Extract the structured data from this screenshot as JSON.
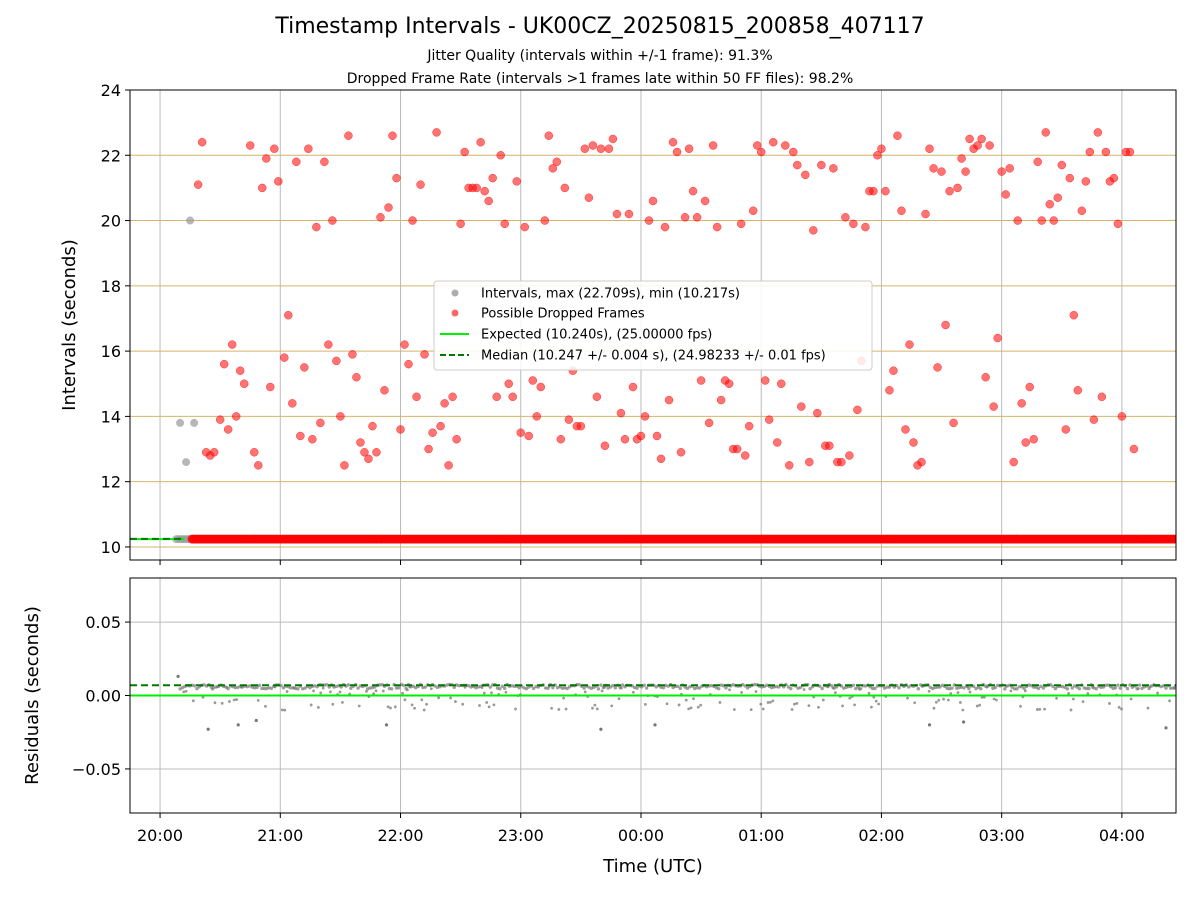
{
  "title": "Timestamp Intervals - UK00CZ_20250815_200858_407117",
  "subtitle_1": "Jitter Quality (intervals within +/-1 frame): 91.3%",
  "subtitle_2": "Dropped Frame Rate (intervals >1 frames late within 50 FF files): 98.2%",
  "colors": {
    "intervals": "#999999",
    "dropped": "#ff0000",
    "expected": "#00ee00",
    "median": "#007700",
    "hgrid": "#d4b46a",
    "vgrid": "#bbbbbb",
    "residuals": "#777777"
  },
  "chart_data": [
    {
      "type": "scatter",
      "name": "intervals",
      "xlabel": "",
      "ylabel": "Intervals (seconds)",
      "x_ticks": [
        "20:00",
        "21:00",
        "22:00",
        "23:00",
        "00:00",
        "01:00",
        "02:00",
        "03:00",
        "04:00"
      ],
      "y_ticks": [
        "10",
        "12",
        "14",
        "16",
        "18",
        "20",
        "22",
        "24"
      ],
      "xlim": [
        "19:45",
        "04:27"
      ],
      "ylim": [
        9.6,
        24
      ],
      "legend": {
        "placement": "center",
        "entries": [
          {
            "label": "Intervals, max (22.709s), min (10.217s)",
            "kind": "gray-dot"
          },
          {
            "label": "Possible Dropped Frames",
            "kind": "red-dot"
          },
          {
            "label": "Expected (10.240s), (25.00000 fps)",
            "kind": "green-line"
          },
          {
            "label": "Median (10.247 +/- 0.004 s), (24.98233 +/- 0.01 fps)",
            "kind": "green-dash"
          }
        ]
      },
      "expected_interval": 10.24,
      "median_interval": 10.247,
      "baseline_points": {
        "gray_range": [
          "20:08",
          "20:15"
        ],
        "red_range": [
          "20:16",
          "04:27"
        ],
        "y": 10.24
      },
      "gray_series": [
        {
          "x": "20:10",
          "y": 13.8
        },
        {
          "x": "20:13",
          "y": 12.6
        },
        {
          "x": "20:15",
          "y": 20.0
        },
        {
          "x": "20:17",
          "y": 13.8
        }
      ],
      "red_series": [
        {
          "x": "20:19",
          "y": 21.1
        },
        {
          "x": "20:21",
          "y": 22.4
        },
        {
          "x": "20:23",
          "y": 12.9
        },
        {
          "x": "20:25",
          "y": 12.8
        },
        {
          "x": "20:27",
          "y": 12.9
        },
        {
          "x": "20:30",
          "y": 13.9
        },
        {
          "x": "20:32",
          "y": 15.6
        },
        {
          "x": "20:34",
          "y": 13.6
        },
        {
          "x": "20:36",
          "y": 16.2
        },
        {
          "x": "20:38",
          "y": 14.0
        },
        {
          "x": "20:40",
          "y": 15.4
        },
        {
          "x": "20:42",
          "y": 15.0
        },
        {
          "x": "20:45",
          "y": 22.3
        },
        {
          "x": "20:47",
          "y": 12.9
        },
        {
          "x": "20:49",
          "y": 12.5
        },
        {
          "x": "20:51",
          "y": 21.0
        },
        {
          "x": "20:53",
          "y": 21.9
        },
        {
          "x": "20:55",
          "y": 14.9
        },
        {
          "x": "20:57",
          "y": 22.2
        },
        {
          "x": "20:59",
          "y": 21.2
        },
        {
          "x": "21:02",
          "y": 15.8
        },
        {
          "x": "21:04",
          "y": 17.1
        },
        {
          "x": "21:06",
          "y": 14.4
        },
        {
          "x": "21:08",
          "y": 21.8
        },
        {
          "x": "21:10",
          "y": 13.4
        },
        {
          "x": "21:12",
          "y": 15.5
        },
        {
          "x": "21:14",
          "y": 22.2
        },
        {
          "x": "21:16",
          "y": 13.3
        },
        {
          "x": "21:18",
          "y": 19.8
        },
        {
          "x": "21:20",
          "y": 13.8
        },
        {
          "x": "21:22",
          "y": 21.8
        },
        {
          "x": "21:24",
          "y": 16.2
        },
        {
          "x": "21:26",
          "y": 20.0
        },
        {
          "x": "21:28",
          "y": 15.7
        },
        {
          "x": "21:30",
          "y": 14.0
        },
        {
          "x": "21:32",
          "y": 12.5
        },
        {
          "x": "21:34",
          "y": 22.6
        },
        {
          "x": "21:36",
          "y": 15.9
        },
        {
          "x": "21:38",
          "y": 15.2
        },
        {
          "x": "21:40",
          "y": 13.2
        },
        {
          "x": "21:42",
          "y": 12.9
        },
        {
          "x": "21:44",
          "y": 12.7
        },
        {
          "x": "21:46",
          "y": 13.7
        },
        {
          "x": "21:48",
          "y": 12.9
        },
        {
          "x": "21:50",
          "y": 20.1
        },
        {
          "x": "21:52",
          "y": 14.8
        },
        {
          "x": "21:54",
          "y": 20.4
        },
        {
          "x": "21:56",
          "y": 22.6
        },
        {
          "x": "21:58",
          "y": 21.3
        },
        {
          "x": "22:00",
          "y": 13.6
        },
        {
          "x": "22:02",
          "y": 16.2
        },
        {
          "x": "22:04",
          "y": 15.6
        },
        {
          "x": "22:06",
          "y": 20.0
        },
        {
          "x": "22:08",
          "y": 14.6
        },
        {
          "x": "22:10",
          "y": 21.1
        },
        {
          "x": "22:12",
          "y": 15.9
        },
        {
          "x": "22:14",
          "y": 13.0
        },
        {
          "x": "22:16",
          "y": 13.5
        },
        {
          "x": "22:18",
          "y": 22.7
        },
        {
          "x": "22:20",
          "y": 13.7
        },
        {
          "x": "22:22",
          "y": 14.4
        },
        {
          "x": "22:24",
          "y": 12.5
        },
        {
          "x": "22:26",
          "y": 14.6
        },
        {
          "x": "22:28",
          "y": 13.3
        },
        {
          "x": "22:30",
          "y": 19.9
        },
        {
          "x": "22:32",
          "y": 22.1
        },
        {
          "x": "22:34",
          "y": 21.0
        },
        {
          "x": "22:36",
          "y": 21.0
        },
        {
          "x": "22:38",
          "y": 21.0
        },
        {
          "x": "22:40",
          "y": 22.4
        },
        {
          "x": "22:42",
          "y": 20.9
        },
        {
          "x": "22:44",
          "y": 20.6
        },
        {
          "x": "22:46",
          "y": 21.3
        },
        {
          "x": "22:48",
          "y": 14.6
        },
        {
          "x": "22:50",
          "y": 22.0
        },
        {
          "x": "22:52",
          "y": 19.9
        },
        {
          "x": "22:54",
          "y": 15.0
        },
        {
          "x": "22:56",
          "y": 14.6
        },
        {
          "x": "22:58",
          "y": 21.2
        },
        {
          "x": "23:00",
          "y": 13.5
        },
        {
          "x": "23:02",
          "y": 19.8
        },
        {
          "x": "23:04",
          "y": 13.4
        },
        {
          "x": "23:06",
          "y": 15.1
        },
        {
          "x": "23:08",
          "y": 14.0
        },
        {
          "x": "23:10",
          "y": 14.9
        },
        {
          "x": "23:12",
          "y": 20.0
        },
        {
          "x": "23:14",
          "y": 22.6
        },
        {
          "x": "23:16",
          "y": 21.6
        },
        {
          "x": "23:18",
          "y": 21.8
        },
        {
          "x": "23:20",
          "y": 13.3
        },
        {
          "x": "23:22",
          "y": 21.0
        },
        {
          "x": "23:24",
          "y": 13.9
        },
        {
          "x": "23:26",
          "y": 15.4
        },
        {
          "x": "23:28",
          "y": 13.7
        },
        {
          "x": "23:30",
          "y": 13.7
        },
        {
          "x": "23:32",
          "y": 22.2
        },
        {
          "x": "23:34",
          "y": 20.7
        },
        {
          "x": "23:36",
          "y": 22.3
        },
        {
          "x": "23:38",
          "y": 14.6
        },
        {
          "x": "23:40",
          "y": 22.2
        },
        {
          "x": "23:42",
          "y": 13.1
        },
        {
          "x": "23:44",
          "y": 22.2
        },
        {
          "x": "23:46",
          "y": 22.5
        },
        {
          "x": "23:48",
          "y": 20.2
        },
        {
          "x": "23:50",
          "y": 14.1
        },
        {
          "x": "23:52",
          "y": 13.3
        },
        {
          "x": "23:54",
          "y": 20.2
        },
        {
          "x": "23:56",
          "y": 14.9
        },
        {
          "x": "23:58",
          "y": 13.3
        },
        {
          "x": "00:00",
          "y": 13.4
        },
        {
          "x": "00:02",
          "y": 14.0
        },
        {
          "x": "00:04",
          "y": 20.0
        },
        {
          "x": "00:06",
          "y": 20.6
        },
        {
          "x": "00:08",
          "y": 13.4
        },
        {
          "x": "00:10",
          "y": 12.7
        },
        {
          "x": "00:12",
          "y": 19.8
        },
        {
          "x": "00:14",
          "y": 14.5
        },
        {
          "x": "00:16",
          "y": 22.4
        },
        {
          "x": "00:18",
          "y": 22.1
        },
        {
          "x": "00:20",
          "y": 12.9
        },
        {
          "x": "00:22",
          "y": 20.1
        },
        {
          "x": "00:24",
          "y": 22.2
        },
        {
          "x": "00:26",
          "y": 20.9
        },
        {
          "x": "00:28",
          "y": 20.1
        },
        {
          "x": "00:30",
          "y": 15.1
        },
        {
          "x": "00:32",
          "y": 20.6
        },
        {
          "x": "00:34",
          "y": 13.8
        },
        {
          "x": "00:36",
          "y": 22.3
        },
        {
          "x": "00:38",
          "y": 19.8
        },
        {
          "x": "00:40",
          "y": 14.5
        },
        {
          "x": "00:42",
          "y": 15.1
        },
        {
          "x": "00:44",
          "y": 15.0
        },
        {
          "x": "00:46",
          "y": 13.0
        },
        {
          "x": "00:48",
          "y": 13.0
        },
        {
          "x": "00:50",
          "y": 19.9
        },
        {
          "x": "00:52",
          "y": 12.8
        },
        {
          "x": "00:54",
          "y": 13.7
        },
        {
          "x": "00:56",
          "y": 20.3
        },
        {
          "x": "00:58",
          "y": 22.3
        },
        {
          "x": "01:00",
          "y": 22.1
        },
        {
          "x": "01:02",
          "y": 15.1
        },
        {
          "x": "01:04",
          "y": 13.9
        },
        {
          "x": "01:06",
          "y": 22.4
        },
        {
          "x": "01:08",
          "y": 13.2
        },
        {
          "x": "01:10",
          "y": 15.0
        },
        {
          "x": "01:12",
          "y": 22.3
        },
        {
          "x": "01:14",
          "y": 12.5
        },
        {
          "x": "01:16",
          "y": 22.1
        },
        {
          "x": "01:18",
          "y": 21.7
        },
        {
          "x": "01:20",
          "y": 14.3
        },
        {
          "x": "01:22",
          "y": 21.4
        },
        {
          "x": "01:24",
          "y": 12.6
        },
        {
          "x": "01:26",
          "y": 19.7
        },
        {
          "x": "01:28",
          "y": 14.1
        },
        {
          "x": "01:30",
          "y": 21.7
        },
        {
          "x": "01:32",
          "y": 13.1
        },
        {
          "x": "01:34",
          "y": 13.1
        },
        {
          "x": "01:36",
          "y": 21.6
        },
        {
          "x": "01:38",
          "y": 12.6
        },
        {
          "x": "01:40",
          "y": 12.6
        },
        {
          "x": "01:42",
          "y": 20.1
        },
        {
          "x": "01:44",
          "y": 12.8
        },
        {
          "x": "01:46",
          "y": 19.9
        },
        {
          "x": "01:48",
          "y": 14.2
        },
        {
          "x": "01:50",
          "y": 15.7
        },
        {
          "x": "01:52",
          "y": 19.8
        },
        {
          "x": "01:54",
          "y": 20.9
        },
        {
          "x": "01:56",
          "y": 20.9
        },
        {
          "x": "01:58",
          "y": 22.0
        },
        {
          "x": "02:00",
          "y": 22.2
        },
        {
          "x": "02:02",
          "y": 20.9
        },
        {
          "x": "02:04",
          "y": 14.8
        },
        {
          "x": "02:06",
          "y": 15.4
        },
        {
          "x": "02:08",
          "y": 22.6
        },
        {
          "x": "02:10",
          "y": 20.3
        },
        {
          "x": "02:12",
          "y": 13.6
        },
        {
          "x": "02:14",
          "y": 16.2
        },
        {
          "x": "02:16",
          "y": 13.2
        },
        {
          "x": "02:18",
          "y": 12.5
        },
        {
          "x": "02:20",
          "y": 12.6
        },
        {
          "x": "02:22",
          "y": 20.2
        },
        {
          "x": "02:24",
          "y": 22.2
        },
        {
          "x": "02:26",
          "y": 21.6
        },
        {
          "x": "02:28",
          "y": 15.5
        },
        {
          "x": "02:30",
          "y": 21.5
        },
        {
          "x": "02:32",
          "y": 16.8
        },
        {
          "x": "02:34",
          "y": 20.9
        },
        {
          "x": "02:36",
          "y": 13.8
        },
        {
          "x": "02:38",
          "y": 21.0
        },
        {
          "x": "02:40",
          "y": 21.9
        },
        {
          "x": "02:42",
          "y": 21.5
        },
        {
          "x": "02:44",
          "y": 22.5
        },
        {
          "x": "02:46",
          "y": 22.2
        },
        {
          "x": "02:48",
          "y": 22.3
        },
        {
          "x": "02:50",
          "y": 22.5
        },
        {
          "x": "02:52",
          "y": 15.2
        },
        {
          "x": "02:54",
          "y": 22.3
        },
        {
          "x": "02:56",
          "y": 14.3
        },
        {
          "x": "02:58",
          "y": 16.4
        },
        {
          "x": "03:00",
          "y": 21.5
        },
        {
          "x": "03:02",
          "y": 20.8
        },
        {
          "x": "03:04",
          "y": 21.6
        },
        {
          "x": "03:06",
          "y": 12.6
        },
        {
          "x": "03:08",
          "y": 20.0
        },
        {
          "x": "03:10",
          "y": 14.4
        },
        {
          "x": "03:12",
          "y": 13.2
        },
        {
          "x": "03:14",
          "y": 14.9
        },
        {
          "x": "03:16",
          "y": 13.3
        },
        {
          "x": "03:18",
          "y": 21.8
        },
        {
          "x": "03:20",
          "y": 20.0
        },
        {
          "x": "03:22",
          "y": 22.7
        },
        {
          "x": "03:24",
          "y": 20.5
        },
        {
          "x": "03:26",
          "y": 20.0
        },
        {
          "x": "03:28",
          "y": 20.7
        },
        {
          "x": "03:30",
          "y": 21.7
        },
        {
          "x": "03:32",
          "y": 13.6
        },
        {
          "x": "03:34",
          "y": 21.3
        },
        {
          "x": "03:36",
          "y": 17.1
        },
        {
          "x": "03:38",
          "y": 14.8
        },
        {
          "x": "03:40",
          "y": 20.3
        },
        {
          "x": "03:42",
          "y": 21.2
        },
        {
          "x": "03:44",
          "y": 22.1
        },
        {
          "x": "03:46",
          "y": 13.9
        },
        {
          "x": "03:48",
          "y": 22.7
        },
        {
          "x": "03:50",
          "y": 14.6
        },
        {
          "x": "03:52",
          "y": 22.1
        },
        {
          "x": "03:54",
          "y": 21.2
        },
        {
          "x": "03:56",
          "y": 21.3
        },
        {
          "x": "03:58",
          "y": 19.9
        },
        {
          "x": "04:00",
          "y": 14.0
        },
        {
          "x": "04:02",
          "y": 22.1
        },
        {
          "x": "04:04",
          "y": 22.1
        },
        {
          "x": "04:06",
          "y": 13.0
        }
      ]
    },
    {
      "type": "scatter",
      "name": "residuals",
      "xlabel": "Time (UTC)",
      "ylabel": "Residuals (seconds)",
      "x_ticks": [
        "20:00",
        "21:00",
        "22:00",
        "23:00",
        "00:00",
        "01:00",
        "02:00",
        "03:00",
        "04:00"
      ],
      "y_ticks": [
        "0.05",
        "0.00",
        "−0.05"
      ],
      "y_tick_values": [
        0.05,
        0.0,
        -0.05
      ],
      "xlim": [
        "19:45",
        "04:27"
      ],
      "ylim": [
        -0.08,
        0.08
      ],
      "expected_residual": 0.0,
      "median_residual": 0.007,
      "band": {
        "y_main": 0.006,
        "spread_low": -0.01,
        "spread_high": 0.009
      },
      "outliers": [
        {
          "x": "20:09",
          "y": 0.013
        },
        {
          "x": "20:24",
          "y": -0.023
        },
        {
          "x": "20:39",
          "y": -0.02
        },
        {
          "x": "20:48",
          "y": -0.017
        },
        {
          "x": "21:53",
          "y": -0.02
        },
        {
          "x": "23:40",
          "y": -0.023
        },
        {
          "x": "00:07",
          "y": -0.02
        },
        {
          "x": "02:24",
          "y": -0.02
        },
        {
          "x": "02:41",
          "y": -0.018
        },
        {
          "x": "04:22",
          "y": -0.022
        }
      ]
    }
  ]
}
